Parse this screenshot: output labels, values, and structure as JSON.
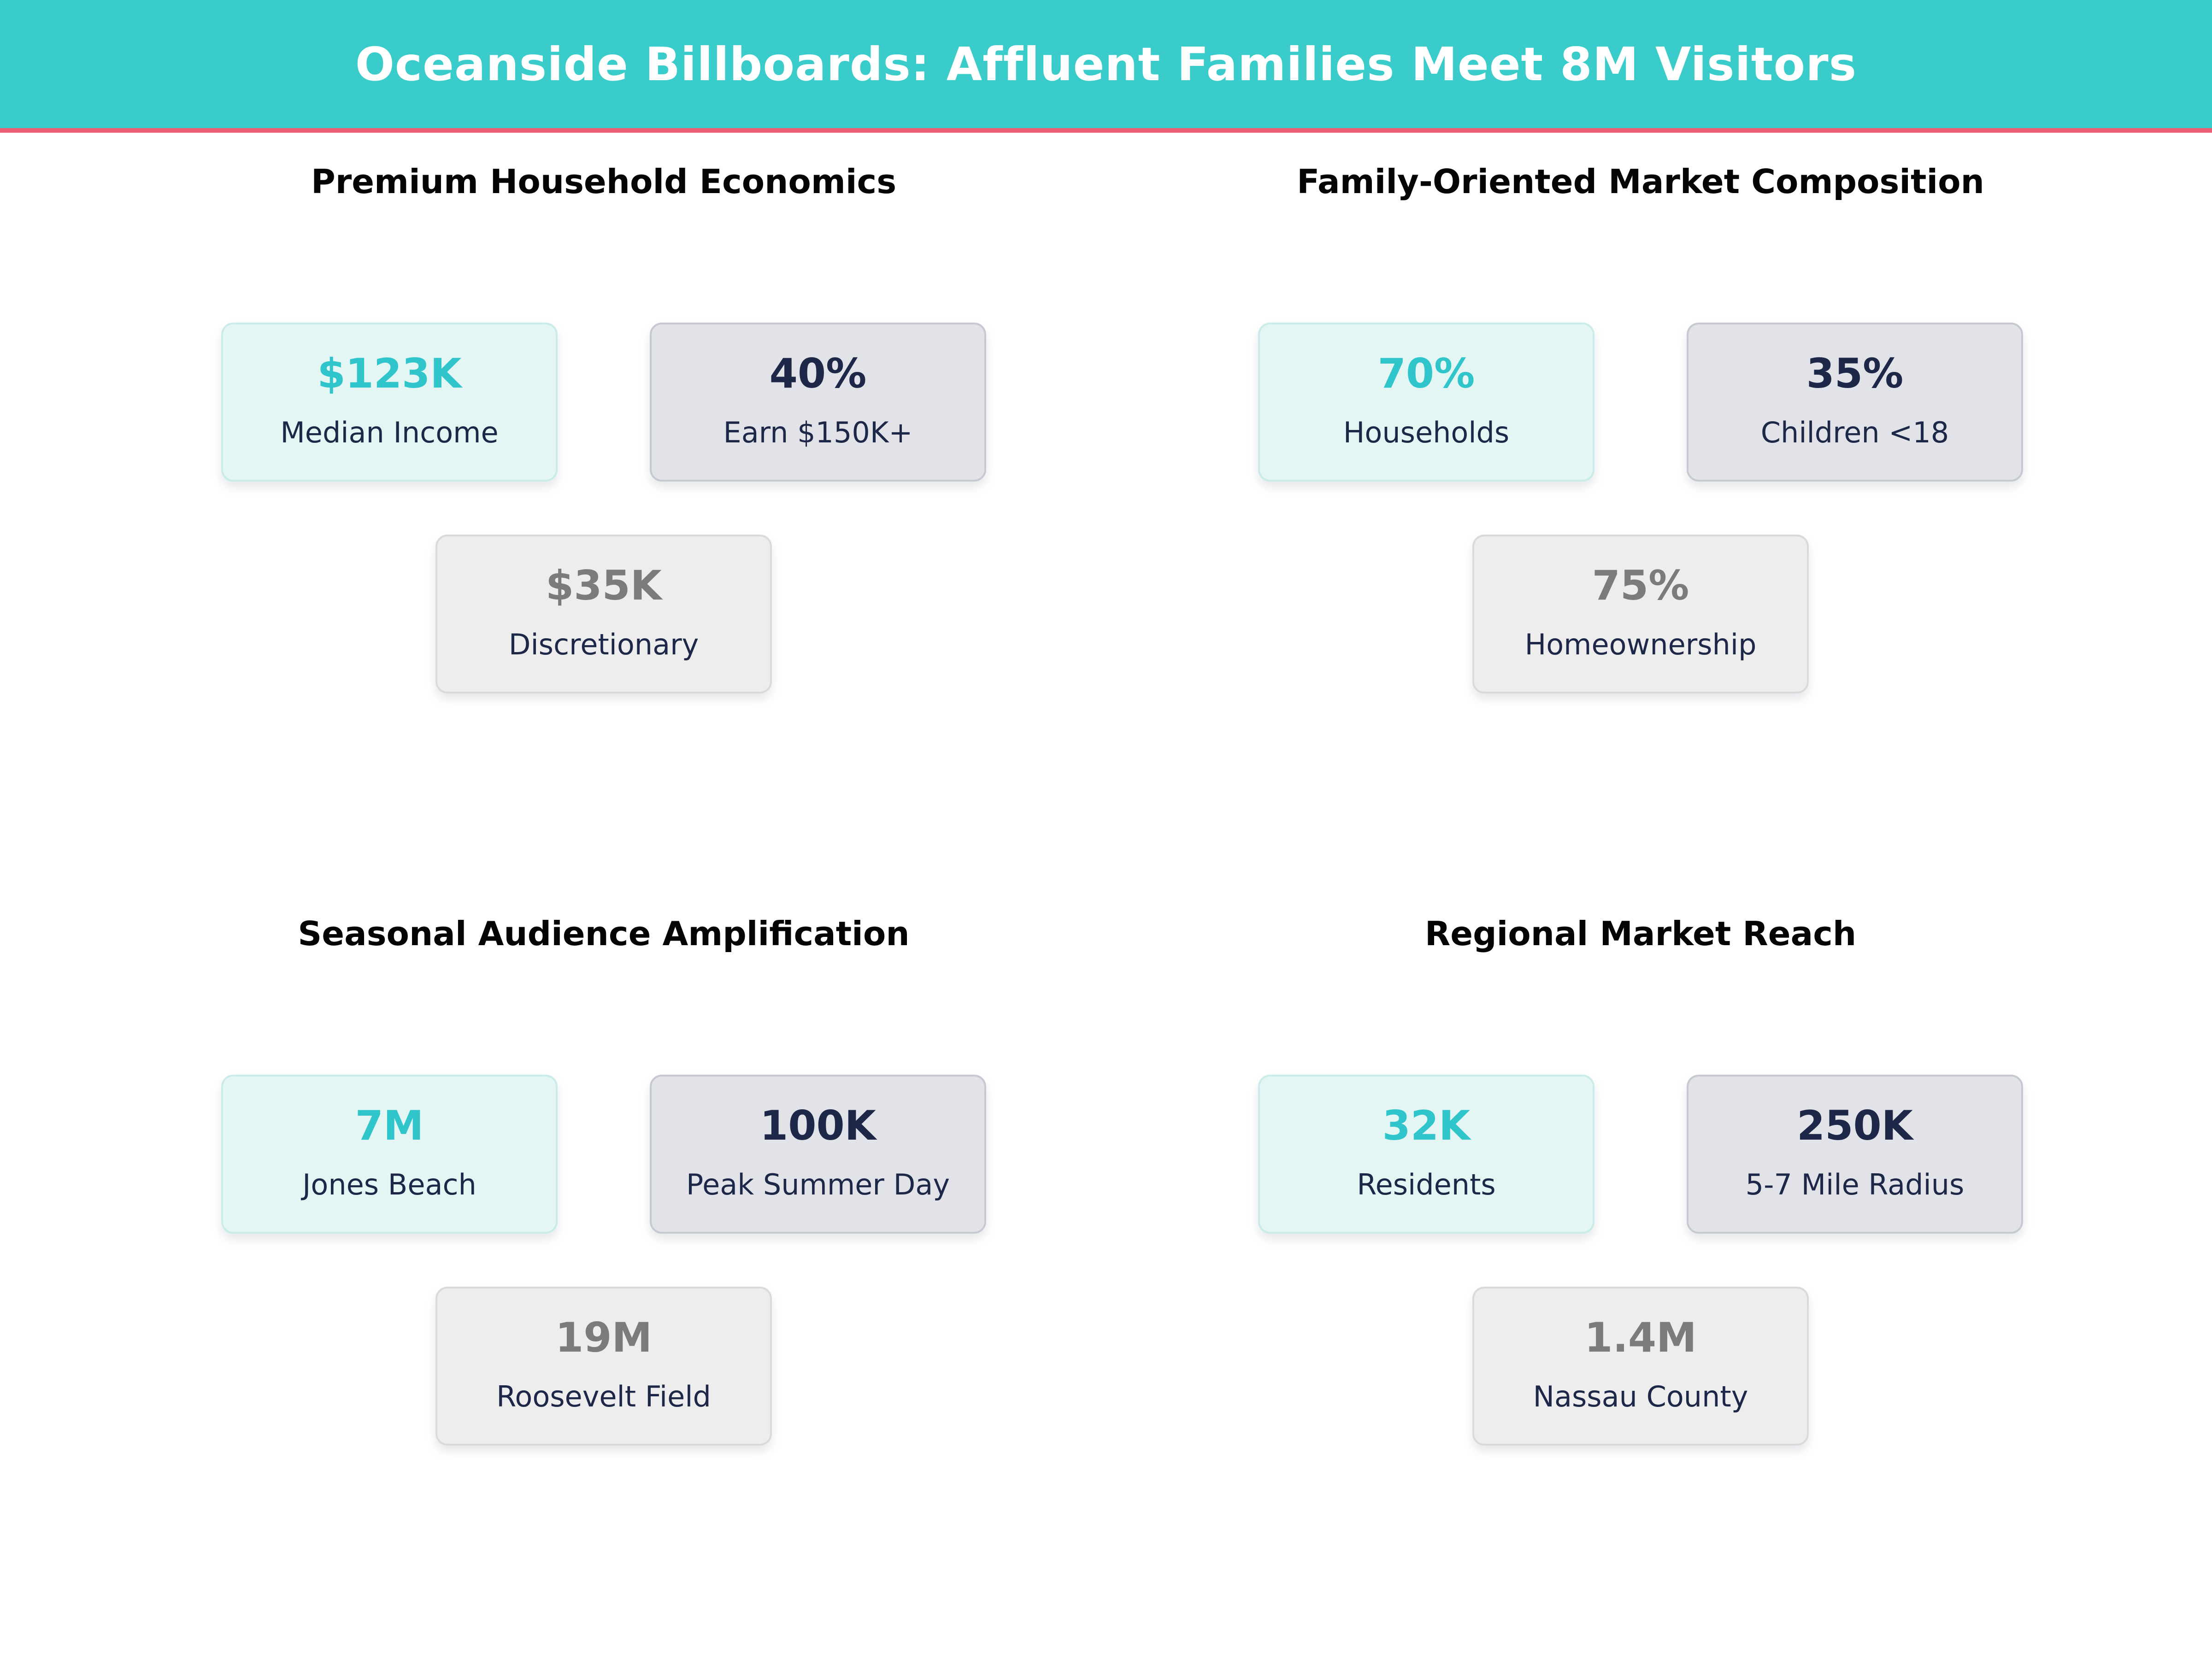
{
  "header": {
    "title": "Oceanside Billboards: Affluent Families Meet 8M Visitors"
  },
  "colors": {
    "header_bg": "#3accca",
    "divider": "#ed5f74",
    "accent_teal": "#30c5cb",
    "navy": "#1d2747",
    "gray_value": "#7b7b7b",
    "teal_card_bg": "#e3f6f4",
    "gray_card_bg": "#e2e3e8",
    "light_card_bg": "#ededed"
  },
  "sections": [
    {
      "title": "Premium Household Economics",
      "cards": [
        {
          "value": "$123K",
          "label": "Median Income",
          "variant": "teal"
        },
        {
          "value": "40%",
          "label": "Earn $150K+",
          "variant": "gray"
        },
        {
          "value": "$35K",
          "label": "Discretionary",
          "variant": "light"
        }
      ]
    },
    {
      "title": "Family-Oriented Market Composition",
      "cards": [
        {
          "value": "70%",
          "label": "Households",
          "variant": "teal"
        },
        {
          "value": "35%",
          "label": "Children <18",
          "variant": "gray"
        },
        {
          "value": "75%",
          "label": "Homeownership",
          "variant": "light"
        }
      ]
    },
    {
      "title": "Seasonal Audience Amplification",
      "cards": [
        {
          "value": "7M",
          "label": "Jones Beach",
          "variant": "teal"
        },
        {
          "value": "100K",
          "label": "Peak Summer Day",
          "variant": "gray"
        },
        {
          "value": "19M",
          "label": "Roosevelt Field",
          "variant": "light"
        }
      ]
    },
    {
      "title": "Regional Market Reach",
      "cards": [
        {
          "value": "32K",
          "label": "Residents",
          "variant": "teal"
        },
        {
          "value": "250K",
          "label": "5-7 Mile Radius",
          "variant": "gray"
        },
        {
          "value": "1.4M",
          "label": "Nassau County",
          "variant": "light"
        }
      ]
    }
  ],
  "chart_data": {
    "type": "table",
    "title": "Oceanside Billboards: Affluent Families Meet 8M Visitors",
    "groups": [
      {
        "group": "Premium Household Economics",
        "metrics": [
          {
            "label": "Median Income",
            "value": "$123K"
          },
          {
            "label": "Earn $150K+",
            "value": "40%"
          },
          {
            "label": "Discretionary",
            "value": "$35K"
          }
        ]
      },
      {
        "group": "Family-Oriented Market Composition",
        "metrics": [
          {
            "label": "Households",
            "value": "70%"
          },
          {
            "label": "Children <18",
            "value": "35%"
          },
          {
            "label": "Homeownership",
            "value": "75%"
          }
        ]
      },
      {
        "group": "Seasonal Audience Amplification",
        "metrics": [
          {
            "label": "Jones Beach",
            "value": "7M"
          },
          {
            "label": "Peak Summer Day",
            "value": "100K"
          },
          {
            "label": "Roosevelt Field",
            "value": "19M"
          }
        ]
      },
      {
        "group": "Regional Market Reach",
        "metrics": [
          {
            "label": "Residents",
            "value": "32K"
          },
          {
            "label": "5-7 Mile Radius",
            "value": "250K"
          },
          {
            "label": "Nassau County",
            "value": "1.4M"
          }
        ]
      }
    ]
  }
}
